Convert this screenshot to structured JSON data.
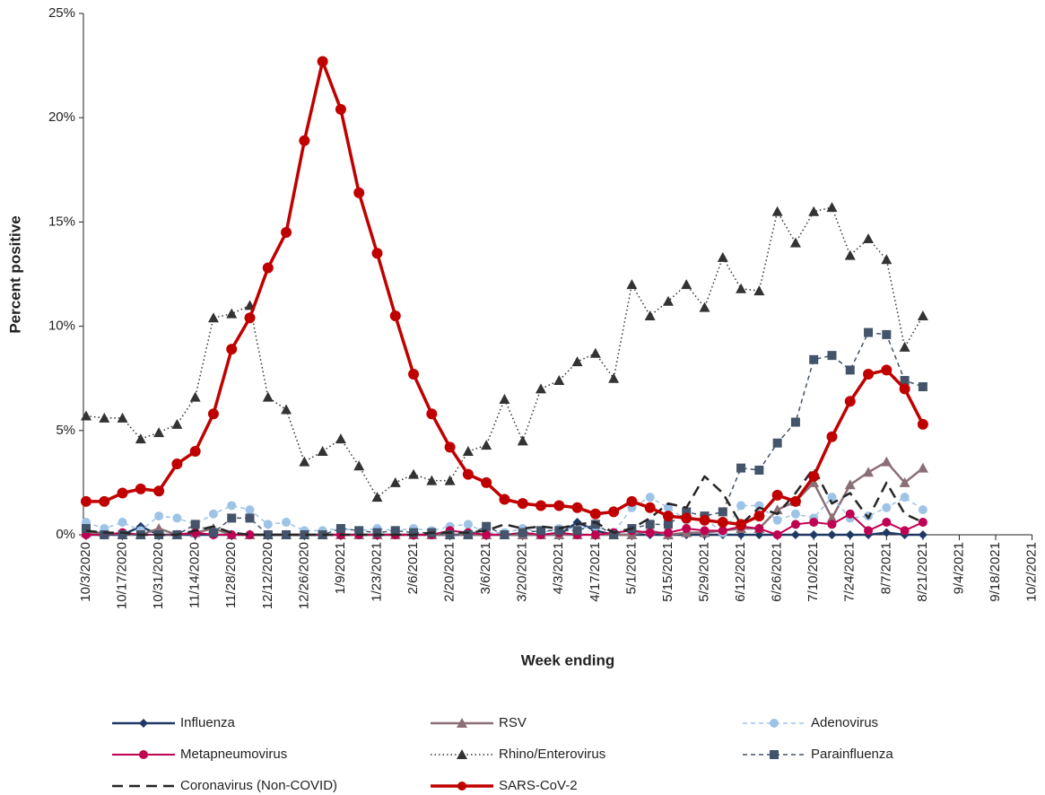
{
  "chart_data": {
    "type": "line",
    "x_label": "Week ending",
    "y_label": "Percent positive",
    "categories": [
      "10/3/2020",
      null,
      "10/17/2020",
      null,
      "10/31/2020",
      null,
      "11/14/2020",
      null,
      "11/28/2020",
      null,
      "12/12/2020",
      null,
      "12/26/2020",
      null,
      "1/9/2021",
      null,
      "1/23/2021",
      null,
      "2/6/2021",
      null,
      "2/20/2021",
      null,
      "3/6/2021",
      null,
      "3/20/2021",
      null,
      "4/3/2021",
      null,
      "4/17/2021",
      null,
      "5/1/2021",
      null,
      "5/15/2021",
      null,
      "5/29/2021",
      null,
      "6/12/2021",
      null,
      "6/26/2021",
      null,
      "7/10/2021",
      null,
      "7/24/2021",
      null,
      "8/7/2021",
      null,
      "8/21/2021",
      null,
      "9/4/2021",
      null,
      "9/18/2021",
      null,
      "10/2/2021"
    ],
    "ylim": [
      0,
      25
    ],
    "yticks": [
      {
        "value": 0,
        "label": "0%"
      },
      {
        "value": 5,
        "label": "5%"
      },
      {
        "value": 10,
        "label": "10%"
      },
      {
        "value": 15,
        "label": "15%"
      },
      {
        "value": 20,
        "label": "20%"
      },
      {
        "value": 25,
        "label": "25%"
      }
    ],
    "series": [
      {
        "name": "Influenza",
        "color": "#203864",
        "dash": "solid",
        "marker": "diamond",
        "width": 2.5,
        "values": [
          0,
          0,
          0,
          0.4,
          0,
          0,
          0,
          0,
          0,
          0,
          0,
          0,
          0,
          0,
          0,
          0,
          0,
          0,
          0,
          0,
          0,
          0,
          0,
          0,
          0,
          0,
          0,
          0.6,
          0.2,
          0,
          0,
          0,
          0,
          0,
          0,
          0,
          0,
          0,
          0,
          0,
          0,
          0,
          0,
          0,
          0.1,
          0,
          0,
          null,
          null,
          null,
          null,
          null,
          null
        ]
      },
      {
        "name": "RSV",
        "color": "#8b6f76",
        "dash": "solid",
        "marker": "triangle",
        "width": 2.5,
        "values": [
          0.1,
          0.1,
          0,
          0,
          0.3,
          0,
          0.1,
          0.3,
          0,
          0,
          0,
          0,
          0,
          0,
          0,
          0,
          0,
          0,
          0,
          0,
          0,
          0,
          0,
          0,
          0,
          0,
          0,
          0,
          0,
          0,
          0,
          0.2,
          0,
          0.1,
          0.1,
          0.2,
          0.3,
          0.3,
          1.2,
          1.6,
          2.5,
          0.8,
          2.4,
          3.0,
          3.5,
          2.5,
          3.2,
          null,
          null,
          null,
          null,
          null,
          null
        ]
      },
      {
        "name": "Adenovirus",
        "color": "#9dc3e6",
        "dash": "dash",
        "marker": "circle",
        "width": 1.5,
        "values": [
          0.6,
          0.3,
          0.6,
          0.2,
          0.9,
          0.8,
          0.5,
          1.0,
          1.4,
          1.2,
          0.5,
          0.6,
          0.2,
          0.2,
          0.3,
          0.2,
          0.3,
          0.2,
          0.3,
          0.2,
          0.4,
          0.5,
          0.1,
          0.1,
          0.3,
          0.1,
          0.3,
          0.3,
          0.4,
          0.1,
          1.3,
          1.8,
          1.3,
          0.7,
          0.8,
          0.1,
          1.4,
          1.4,
          0.7,
          1.0,
          0.8,
          1.8,
          0.8,
          0.9,
          1.3,
          1.8,
          1.2,
          null,
          null,
          null,
          null,
          null,
          null
        ]
      },
      {
        "name": "Metapneumovirus",
        "color": "#c00050",
        "dash": "solid",
        "marker": "circle",
        "width": 2,
        "values": [
          0,
          0,
          0.1,
          0,
          0,
          0,
          0.1,
          0,
          0,
          0,
          0,
          0,
          0,
          0,
          0,
          0,
          0,
          0,
          0,
          0,
          0.2,
          0.1,
          0,
          0,
          0.1,
          0,
          0.1,
          0,
          0,
          0.1,
          0.2,
          0.1,
          0.1,
          0.3,
          0.2,
          0.2,
          0.4,
          0.3,
          0,
          0.5,
          0.6,
          0.5,
          1.0,
          0.2,
          0.6,
          0.2,
          0.6,
          null,
          null,
          null,
          null,
          null,
          null
        ]
      },
      {
        "name": "Rhino/Enterovirus",
        "color": "#333333",
        "dash": "dot",
        "marker": "triangle",
        "width": 1.5,
        "values": [
          5.7,
          5.6,
          5.6,
          4.6,
          4.9,
          5.3,
          6.6,
          10.4,
          10.6,
          11.0,
          6.6,
          6.0,
          3.5,
          4.0,
          4.6,
          3.3,
          1.8,
          2.5,
          2.9,
          2.6,
          2.6,
          4.0,
          4.3,
          6.5,
          4.5,
          7.0,
          7.4,
          8.3,
          8.7,
          7.5,
          12.0,
          10.5,
          11.2,
          12.0,
          10.9,
          13.3,
          11.8,
          11.7,
          15.5,
          14.0,
          15.5,
          15.7,
          13.4,
          14.2,
          13.2,
          9.0,
          10.5,
          null,
          null,
          null,
          null,
          null,
          null
        ]
      },
      {
        "name": "Parainfluenza",
        "color": "#44546a",
        "dash": "dash",
        "marker": "square",
        "width": 1.5,
        "values": [
          0.3,
          0,
          0,
          0,
          0,
          0,
          0.5,
          0.1,
          0.8,
          0.8,
          0,
          0,
          0,
          0,
          0.3,
          0.2,
          0.1,
          0.2,
          0.1,
          0.1,
          0,
          0,
          0.4,
          0,
          0.1,
          0.2,
          0.2,
          0.2,
          0.5,
          0,
          0.3,
          0.5,
          0.5,
          1.1,
          0.9,
          1.1,
          3.2,
          3.1,
          4.4,
          5.4,
          8.4,
          8.6,
          7.9,
          9.7,
          9.6,
          7.4,
          7.1,
          null,
          null,
          null,
          null,
          null,
          null
        ]
      },
      {
        "name": "Coronavirus (Non-COVID)",
        "color": "#262626",
        "dash": "longdash",
        "marker": "none",
        "width": 2.5,
        "values": [
          0.2,
          0.1,
          0.1,
          0,
          0,
          0,
          0.2,
          0.4,
          0.1,
          0,
          0,
          0,
          0,
          0,
          0,
          0,
          0,
          0,
          0,
          0.1,
          0.1,
          0.1,
          0.2,
          0.5,
          0.3,
          0.4,
          0.3,
          0.5,
          0.6,
          0.1,
          0.3,
          0.8,
          1.5,
          1.3,
          2.8,
          2.0,
          0.5,
          1.3,
          1.0,
          2.0,
          3.2,
          1.5,
          2.0,
          0.8,
          2.5,
          1.0,
          0.6,
          null,
          null,
          null,
          null,
          null,
          null
        ]
      },
      {
        "name": "SARS-CoV-2",
        "color": "#c00000",
        "dash": "solid",
        "marker": "circle",
        "width": 3.5,
        "values": [
          1.6,
          1.6,
          2.0,
          2.2,
          2.1,
          3.4,
          4.0,
          5.8,
          8.9,
          10.4,
          12.8,
          14.5,
          18.9,
          22.7,
          20.4,
          16.4,
          13.5,
          10.5,
          7.7,
          5.8,
          4.2,
          2.9,
          2.5,
          1.7,
          1.5,
          1.4,
          1.4,
          1.3,
          1.0,
          1.1,
          1.6,
          1.3,
          0.9,
          0.8,
          0.7,
          0.6,
          0.5,
          0.9,
          1.9,
          1.6,
          2.8,
          4.7,
          6.4,
          7.7,
          7.9,
          7.0,
          5.3,
          null,
          null,
          null,
          null,
          null,
          null
        ]
      }
    ]
  }
}
